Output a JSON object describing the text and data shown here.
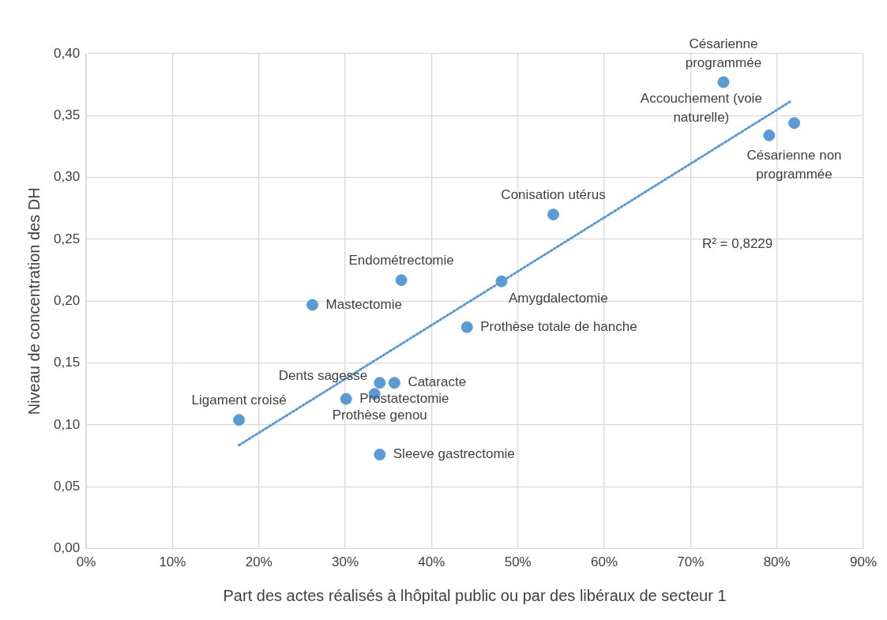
{
  "chart_data": {
    "type": "scatter",
    "xlabel": "Part des actes réalisés à lhôpital public ou par des libéraux de secteur 1",
    "ylabel": "Niveau de concentration des DH",
    "xlim": [
      0,
      90
    ],
    "xticks": [
      {
        "value": 0,
        "label": "0%"
      },
      {
        "value": 10,
        "label": "10%"
      },
      {
        "value": 20,
        "label": "20%"
      },
      {
        "value": 30,
        "label": "30%"
      },
      {
        "value": 40,
        "label": "40%"
      },
      {
        "value": 50,
        "label": "50%"
      },
      {
        "value": 60,
        "label": "60%"
      },
      {
        "value": 70,
        "label": "70%"
      },
      {
        "value": 80,
        "label": "80%"
      },
      {
        "value": 90,
        "label": "90%"
      }
    ],
    "ylim": [
      0,
      0.4
    ],
    "yticks": [
      {
        "value": 0,
        "label": "0,00"
      },
      {
        "value": 0.05,
        "label": "0,05"
      },
      {
        "value": 0.1,
        "label": "0,10"
      },
      {
        "value": 0.15,
        "label": "0,15"
      },
      {
        "value": 0.2,
        "label": "0,20"
      },
      {
        "value": 0.25,
        "label": "0,25"
      },
      {
        "value": 0.3,
        "label": "0,30"
      },
      {
        "value": 0.35,
        "label": "0,35"
      },
      {
        "value": 0.4,
        "label": "0,40"
      }
    ],
    "grid": true,
    "legend": false,
    "series": [
      {
        "color": "#5b9bd5",
        "marker": "circle",
        "x": [
          73.8,
          79.1,
          82.0,
          54.1,
          36.5,
          48.1,
          26.2,
          44.1,
          34.0,
          35.7,
          33.4,
          30.1,
          17.7,
          34.0
        ],
        "values": [
          0.377,
          0.334,
          0.344,
          0.27,
          0.217,
          0.216,
          0.197,
          0.179,
          0.134,
          0.134,
          0.125,
          0.121,
          0.104,
          0.076
        ]
      },
      {
        "type": "line",
        "color": "#5b9bd5",
        "line_style": "dotted",
        "x": [
          17.7,
          81.7
        ],
        "values": [
          0.0836,
          0.362
        ]
      }
    ],
    "annotations": [
      {
        "text": "Césarienne\nprogrammée",
        "x": 73.8,
        "y": 0.377
      },
      {
        "text": "Accouchement (voie\nnaturelle)",
        "x": 79.1,
        "y": 0.334
      },
      {
        "text": "Césarienne non\nprogrammée",
        "x": 82.0,
        "y": 0.344
      },
      {
        "text": "Conisation utérus",
        "x": 54.1,
        "y": 0.27
      },
      "R² = 0,8229",
      {
        "text": "Endométrectomie",
        "x": 36.5,
        "y": 0.217
      },
      {
        "text": "Amygdalectomie",
        "x": 48.1,
        "y": 0.216
      },
      {
        "text": "Mastectomie",
        "x": 26.2,
        "y": 0.197
      },
      {
        "text": "Prothèse totale de hanche",
        "x": 44.1,
        "y": 0.179
      },
      {
        "text": "Prothèse genou",
        "x": 34.0,
        "y": 0.134
      },
      {
        "text": "Cataracte",
        "x": 35.7,
        "y": 0.134
      },
      {
        "text": "Dents sagesse",
        "x": 33.4,
        "y": 0.125
      },
      {
        "text": "Prostatectomie",
        "x": 30.1,
        "y": 0.121
      },
      {
        "text": "Ligament croisé",
        "x": 17.7,
        "y": 0.104
      },
      {
        "text": "Sleeve gastrectomie",
        "x": 34.0,
        "y": 0.076
      }
    ]
  }
}
